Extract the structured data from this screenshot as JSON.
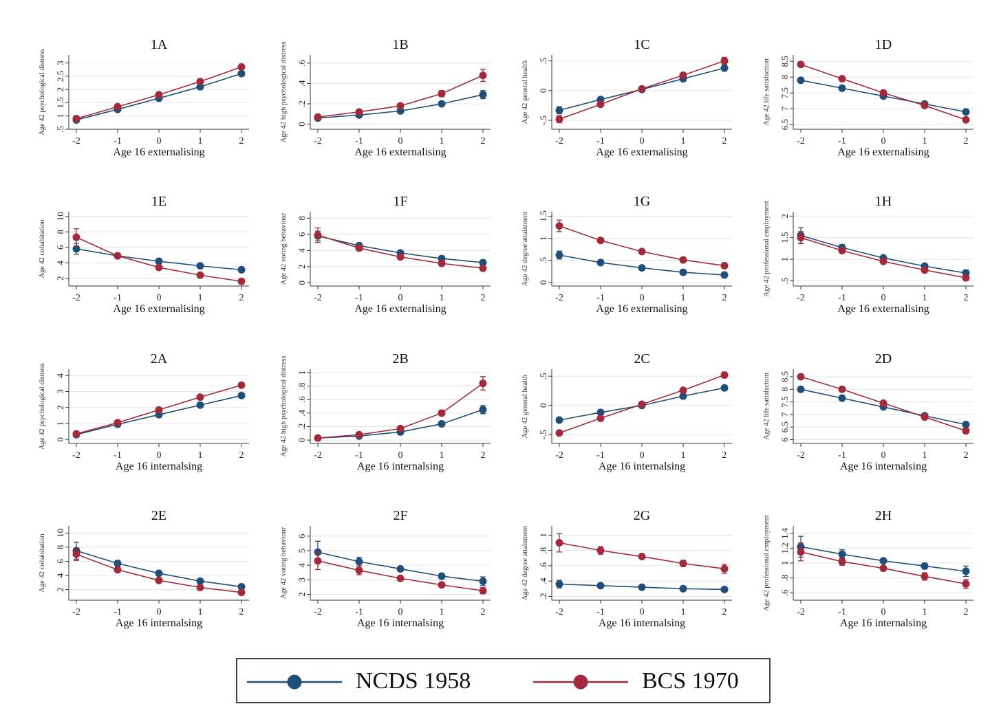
{
  "legend": {
    "series": [
      {
        "name": "NCDS 1958",
        "color": "#1f4e79"
      },
      {
        "name": "BCS 1970",
        "color": "#a32a3a"
      }
    ]
  },
  "chart_data": [
    {
      "type": "line",
      "title": "1A",
      "xlabel": "Age 16 externalising",
      "ylabel": "Age 42 psychological distress",
      "x": [
        -2,
        -1,
        0,
        1,
        2
      ],
      "ylim": [
        0.5,
        3.3
      ],
      "yticks": [
        0.5,
        1,
        1.5,
        2,
        2.5,
        3
      ],
      "ytick_labels": [
        ".5",
        "1",
        "1.5",
        "2",
        "2.5",
        "3"
      ],
      "series": [
        {
          "values": [
            0.85,
            1.25,
            1.67,
            2.1,
            2.6
          ],
          "err": [
            0.04,
            0.03,
            0.02,
            0.04,
            0.06
          ]
        },
        {
          "values": [
            0.9,
            1.35,
            1.8,
            2.3,
            2.85
          ],
          "err": [
            0.04,
            0.03,
            0.03,
            0.05,
            0.07
          ]
        }
      ]
    },
    {
      "type": "line",
      "title": "1B",
      "xlabel": "Age 16 externalising",
      "ylabel": "Age 42 high psychological distress",
      "x": [
        -2,
        -1,
        0,
        1,
        2
      ],
      "ylim": [
        -0.05,
        0.68
      ],
      "yticks": [
        0,
        0.2,
        0.4,
        0.6
      ],
      "ytick_labels": [
        "0",
        ".2",
        ".4",
        ".6"
      ],
      "series": [
        {
          "values": [
            0.06,
            0.09,
            0.13,
            0.2,
            0.29
          ],
          "err": [
            0.01,
            0.01,
            0.01,
            0.02,
            0.04
          ]
        },
        {
          "values": [
            0.07,
            0.12,
            0.18,
            0.3,
            0.48
          ],
          "err": [
            0.01,
            0.01,
            0.01,
            0.03,
            0.06
          ]
        }
      ]
    },
    {
      "type": "line",
      "title": "1C",
      "xlabel": "Age 16 externalising",
      "ylabel": "Age 42 general health",
      "x": [
        -2,
        -1,
        0,
        1,
        2
      ],
      "ylim": [
        -0.65,
        0.6
      ],
      "yticks": [
        -0.5,
        0,
        0.5
      ],
      "ytick_labels": [
        "-.5",
        "0",
        ".5"
      ],
      "series": [
        {
          "values": [
            -0.33,
            -0.15,
            0.02,
            0.2,
            0.38
          ],
          "err": [
            0.06,
            0.03,
            0.02,
            0.03,
            0.05
          ]
        },
        {
          "values": [
            -0.48,
            -0.23,
            0.03,
            0.26,
            0.5
          ],
          "err": [
            0.06,
            0.03,
            0.02,
            0.03,
            0.06
          ]
        }
      ]
    },
    {
      "type": "line",
      "title": "1D",
      "xlabel": "Age 16 externalising",
      "ylabel": "Age 42 life satisfaction",
      "x": [
        -2,
        -1,
        0,
        1,
        2
      ],
      "ylim": [
        6.35,
        8.7
      ],
      "yticks": [
        6.5,
        7,
        7.5,
        8,
        8.5
      ],
      "ytick_labels": [
        "6.5",
        "7",
        "7.5",
        "8",
        "8.5"
      ],
      "series": [
        {
          "values": [
            7.9,
            7.65,
            7.4,
            7.15,
            6.9
          ],
          "err": [
            0.05,
            0.03,
            0.02,
            0.04,
            0.06
          ]
        },
        {
          "values": [
            8.4,
            7.95,
            7.5,
            7.1,
            6.65
          ],
          "err": [
            0.05,
            0.03,
            0.02,
            0.04,
            0.06
          ]
        }
      ]
    },
    {
      "type": "line",
      "title": "1E",
      "xlabel": "Age 16 externalising",
      "ylabel": "Age 42 cohabitation",
      "x": [
        -2,
        -1,
        0,
        1,
        2
      ],
      "ylim": [
        1,
        10.6
      ],
      "yticks": [
        2,
        4,
        6,
        8,
        10
      ],
      "ytick_labels": [
        "2",
        "4",
        "6",
        "8",
        "10"
      ],
      "series": [
        {
          "values": [
            5.8,
            4.9,
            4.2,
            3.6,
            3.1
          ],
          "err": [
            0.7,
            0.3,
            0.15,
            0.25,
            0.35
          ]
        },
        {
          "values": [
            7.3,
            4.9,
            3.4,
            2.4,
            1.6
          ],
          "err": [
            1.1,
            0.35,
            0.15,
            0.2,
            0.25
          ]
        }
      ]
    },
    {
      "type": "line",
      "title": "1F",
      "xlabel": "Age 16 externalising",
      "ylabel": "Age 42 voting behaviour",
      "x": [
        -2,
        -1,
        0,
        1,
        2
      ],
      "ylim": [
        -0.4,
        8.8
      ],
      "yticks": [
        0,
        2,
        4,
        6,
        8
      ],
      "ytick_labels": [
        "0",
        "2",
        "4",
        "6",
        "8"
      ],
      "series": [
        {
          "values": [
            5.8,
            4.6,
            3.7,
            3.0,
            2.5
          ],
          "err": [
            0.6,
            0.25,
            0.15,
            0.2,
            0.3
          ]
        },
        {
          "values": [
            5.9,
            4.3,
            3.2,
            2.4,
            1.8
          ],
          "err": [
            0.9,
            0.3,
            0.15,
            0.2,
            0.25
          ]
        }
      ]
    },
    {
      "type": "line",
      "title": "1G",
      "xlabel": "Age 16 externalising",
      "ylabel": "Age 42 degree attainment",
      "x": [
        -2,
        -1,
        0,
        1,
        2
      ],
      "ylim": [
        -0.08,
        1.6
      ],
      "yticks": [
        0,
        0.5,
        1,
        1.5
      ],
      "ytick_labels": [
        "0",
        ".5",
        "1",
        "1.5"
      ],
      "series": [
        {
          "values": [
            0.62,
            0.45,
            0.33,
            0.23,
            0.17
          ],
          "err": [
            0.09,
            0.04,
            0.02,
            0.03,
            0.04
          ]
        },
        {
          "values": [
            1.28,
            0.95,
            0.7,
            0.51,
            0.38
          ],
          "err": [
            0.13,
            0.05,
            0.03,
            0.04,
            0.06
          ]
        }
      ]
    },
    {
      "type": "line",
      "title": "1H",
      "xlabel": "Age 16 externalising",
      "ylabel": "Age 42 professional employment",
      "x": [
        -2,
        -1,
        0,
        1,
        2
      ],
      "ylim": [
        0.38,
        2.1
      ],
      "yticks": [
        0.5,
        1,
        1.5,
        2
      ],
      "ytick_labels": [
        ".5",
        "1",
        "1.5",
        "2"
      ],
      "series": [
        {
          "values": [
            1.55,
            1.27,
            1.03,
            0.84,
            0.68
          ],
          "err": [
            0.18,
            0.07,
            0.04,
            0.05,
            0.07
          ]
        },
        {
          "values": [
            1.5,
            1.2,
            0.95,
            0.75,
            0.57
          ],
          "err": [
            0.14,
            0.06,
            0.03,
            0.04,
            0.06
          ]
        }
      ]
    },
    {
      "type": "line",
      "title": "2A",
      "xlabel": "Age 16 internalsing",
      "ylabel": "Age 42 psychological distress",
      "x": [
        -2,
        -1,
        0,
        1,
        2
      ],
      "ylim": [
        -0.25,
        4.4
      ],
      "yticks": [
        0,
        1,
        2,
        3,
        4
      ],
      "ytick_labels": [
        "0",
        "1",
        "2",
        "3",
        "4"
      ],
      "series": [
        {
          "values": [
            0.3,
            0.95,
            1.55,
            2.15,
            2.75
          ],
          "err": [
            0.05,
            0.04,
            0.03,
            0.06,
            0.09
          ]
        },
        {
          "values": [
            0.35,
            1.05,
            1.85,
            2.65,
            3.4
          ],
          "err": [
            0.05,
            0.05,
            0.04,
            0.07,
            0.1
          ]
        }
      ]
    },
    {
      "type": "line",
      "title": "2B",
      "xlabel": "Age 16 internalsing",
      "ylabel": "Age 42 high psychological distress",
      "x": [
        -2,
        -1,
        0,
        1,
        2
      ],
      "ylim": [
        -0.05,
        1.05
      ],
      "yticks": [
        0,
        0.2,
        0.4,
        0.6,
        0.8,
        1
      ],
      "ytick_labels": [
        "0",
        ".2",
        ".4",
        ".6",
        ".8",
        "1"
      ],
      "series": [
        {
          "values": [
            0.03,
            0.06,
            0.12,
            0.24,
            0.45
          ],
          "err": [
            0.01,
            0.01,
            0.02,
            0.03,
            0.06
          ]
        },
        {
          "values": [
            0.03,
            0.08,
            0.17,
            0.4,
            0.84
          ],
          "err": [
            0.01,
            0.01,
            0.02,
            0.04,
            0.1
          ]
        }
      ]
    },
    {
      "type": "line",
      "title": "2C",
      "xlabel": "Age 16 internalsing",
      "ylabel": "Age 42 general health",
      "x": [
        -2,
        -1,
        0,
        1,
        2
      ],
      "ylim": [
        -0.65,
        0.62
      ],
      "yticks": [
        -0.5,
        0,
        0.5
      ],
      "ytick_labels": [
        "-.5",
        "0",
        ".5"
      ],
      "series": [
        {
          "values": [
            -0.25,
            -0.12,
            0.0,
            0.16,
            0.3
          ],
          "err": [
            0.03,
            0.02,
            0.02,
            0.03,
            0.04
          ]
        },
        {
          "values": [
            -0.47,
            -0.22,
            0.02,
            0.26,
            0.52
          ],
          "err": [
            0.04,
            0.03,
            0.02,
            0.03,
            0.05
          ]
        }
      ]
    },
    {
      "type": "line",
      "title": "2D",
      "xlabel": "Age 16 internalsing",
      "ylabel": "Age 42 life satisfaction",
      "x": [
        -2,
        -1,
        0,
        1,
        2
      ],
      "ylim": [
        5.85,
        8.8
      ],
      "yticks": [
        6,
        6.5,
        7,
        7.5,
        8,
        8.5
      ],
      "ytick_labels": [
        "6",
        "6.5",
        "7",
        "7.5",
        "8",
        "8.5"
      ],
      "series": [
        {
          "values": [
            8.0,
            7.65,
            7.3,
            6.95,
            6.6
          ],
          "err": [
            0.06,
            0.04,
            0.03,
            0.04,
            0.06
          ]
        },
        {
          "values": [
            8.5,
            8.0,
            7.45,
            6.9,
            6.35
          ],
          "err": [
            0.07,
            0.05,
            0.03,
            0.05,
            0.07
          ]
        }
      ]
    },
    {
      "type": "line",
      "title": "2E",
      "xlabel": "Age 16 internalsing",
      "ylabel": "Age 42 cohabitation",
      "x": [
        -2,
        -1,
        0,
        1,
        2
      ],
      "ylim": [
        0.5,
        11
      ],
      "yticks": [
        2,
        4,
        6,
        8,
        10
      ],
      "ytick_labels": [
        "2",
        "4",
        "6",
        "8",
        "10"
      ],
      "series": [
        {
          "values": [
            7.5,
            5.7,
            4.3,
            3.2,
            2.4
          ],
          "err": [
            1.2,
            0.4,
            0.2,
            0.2,
            0.3
          ]
        },
        {
          "values": [
            7.0,
            4.8,
            3.3,
            2.3,
            1.6
          ],
          "err": [
            0.9,
            0.35,
            0.15,
            0.2,
            0.2
          ]
        }
      ]
    },
    {
      "type": "line",
      "title": "2F",
      "xlabel": "Age 16 internalsing",
      "ylabel": "Age 42 voting behaviour",
      "x": [
        -2,
        -1,
        0,
        1,
        2
      ],
      "ylim": [
        1.6,
        6.7
      ],
      "yticks": [
        2,
        3,
        4,
        5,
        6
      ],
      "ytick_labels": [
        "2",
        "3",
        "4",
        "5",
        "6"
      ],
      "series": [
        {
          "values": [
            4.9,
            4.25,
            3.75,
            3.25,
            2.9
          ],
          "err": [
            0.75,
            0.3,
            0.15,
            0.2,
            0.3
          ]
        },
        {
          "values": [
            4.3,
            3.65,
            3.1,
            2.65,
            2.25
          ],
          "err": [
            0.6,
            0.3,
            0.15,
            0.15,
            0.2
          ]
        }
      ]
    },
    {
      "type": "line",
      "title": "2G",
      "xlabel": "Age 16 internalsing",
      "ylabel": "Age 42 degree attainment",
      "x": [
        -2,
        -1,
        0,
        1,
        2
      ],
      "ylim": [
        0.15,
        1.12
      ],
      "yticks": [
        0.2,
        0.4,
        0.6,
        0.8,
        1
      ],
      "ytick_labels": [
        ".2",
        ".4",
        ".6",
        ".8",
        "1"
      ],
      "series": [
        {
          "values": [
            0.36,
            0.34,
            0.32,
            0.3,
            0.29
          ],
          "err": [
            0.05,
            0.02,
            0.01,
            0.02,
            0.03
          ]
        },
        {
          "values": [
            0.9,
            0.8,
            0.72,
            0.63,
            0.56
          ],
          "err": [
            0.12,
            0.05,
            0.03,
            0.04,
            0.06
          ]
        }
      ]
    },
    {
      "type": "line",
      "title": "2H",
      "xlabel": "Age 16 internalsing",
      "ylabel": "Age 42 professional employment",
      "x": [
        -2,
        -1,
        0,
        1,
        2
      ],
      "ylim": [
        0.5,
        1.5
      ],
      "yticks": [
        0.6,
        0.8,
        1,
        1.2,
        1.4
      ],
      "ytick_labels": [
        ".6",
        ".8",
        "1",
        "1.2",
        "1.4"
      ],
      "series": [
        {
          "values": [
            1.22,
            1.12,
            1.03,
            0.96,
            0.89
          ],
          "err": [
            0.14,
            0.06,
            0.03,
            0.04,
            0.07
          ]
        },
        {
          "values": [
            1.15,
            1.02,
            0.93,
            0.82,
            0.72
          ],
          "err": [
            0.12,
            0.05,
            0.03,
            0.05,
            0.06
          ]
        }
      ]
    }
  ]
}
